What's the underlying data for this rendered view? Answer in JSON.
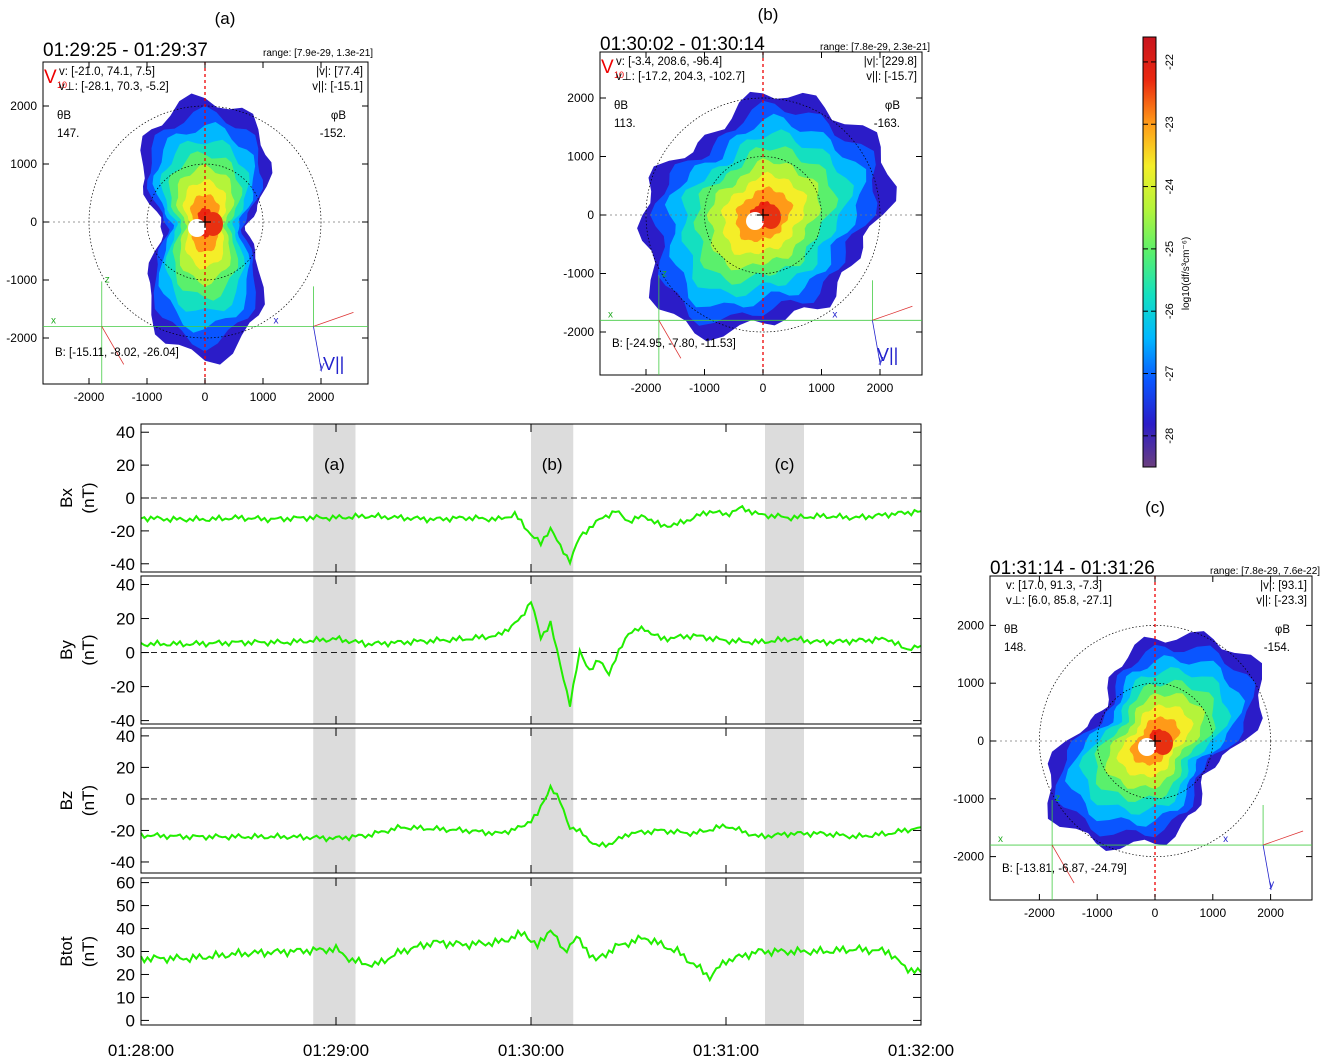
{
  "distributions": [
    {
      "panel_label": "(a)",
      "time_range": "01:29:25 - 01:29:37",
      "range": "range: [7.9e-29, 1.3e-21]",
      "v_label": "V",
      "v_sub": "10",
      "v": "v: [-21.0, 74.1, 7.5]",
      "vperp": "v⊥: [-28.1, 70.3, -5.2]",
      "vabs": "|v|: [77.4]",
      "vpar": "v||: [-15.1]",
      "theta_label": "θB",
      "theta_val": "147.",
      "phi_label": "φB",
      "phi_val": "-152.",
      "b_field": "B: [-15.11, -8.02, -26.04]",
      "axis_x": "x",
      "axis_y": "y",
      "axis_z": "z",
      "vpar_label": "V||",
      "xticks": [
        -2000,
        -1000,
        0,
        1000,
        2000
      ],
      "yticks": [
        2000,
        1000,
        0,
        -1000,
        -2000
      ],
      "core_offset": [
        0.02,
        0.0
      ],
      "blob_shape": "a"
    },
    {
      "panel_label": "(b)",
      "time_range": "01:30:02 - 01:30:14",
      "range": "range: [7.8e-29, 2.3e-21]",
      "v_label": "V",
      "v_sub": "10",
      "v": "v: [-3.4, 208.6, -96.4]",
      "vperp": "v⊥: [-17.2, 204.3, -102.7]",
      "vabs": "|v|: [229.8]",
      "vpar": "v||: [-15.7]",
      "theta_label": "θB",
      "theta_val": "113.",
      "phi_label": "φB",
      "phi_val": "-163.",
      "b_field": "B: [-24.95, -7.80, -11.53]",
      "axis_x": "x",
      "axis_y": "y",
      "axis_z": "z",
      "vpar_label": "V||",
      "xticks": [
        -2000,
        -1000,
        0,
        1000,
        2000
      ],
      "yticks": [
        2000,
        1000,
        0,
        -1000,
        -2000
      ],
      "core_offset": [
        0.0,
        0.0
      ],
      "blob_shape": "b"
    },
    {
      "panel_label": "(c)",
      "time_range": "01:31:14 - 01:31:26",
      "range": "range: [7.8e-29, 7.6e-22]",
      "v_label": "",
      "v_sub": "",
      "v": "v: [17.0, 91.3, -7.3]",
      "vperp": "v⊥: [6.0, 85.8, -27.1]",
      "vabs": "|v|: [93.1]",
      "vpar": "v||: [-23.3]",
      "theta_label": "θB",
      "theta_val": "148.",
      "phi_label": "φB",
      "phi_val": "-154.",
      "b_field": "B: [-13.81, -6.87, -24.79]",
      "axis_x": "x",
      "axis_y": "y",
      "axis_z": "z",
      "vpar_label": "",
      "xticks": [
        -2000,
        -1000,
        0,
        1000,
        2000
      ],
      "yticks": [
        2000,
        1000,
        0,
        -1000,
        -2000
      ],
      "core_offset": [
        0.0,
        0.0
      ],
      "blob_shape": "c"
    }
  ],
  "colorbar": {
    "label": "log10(df/s³cm⁻⁶)",
    "ticks": [
      -22,
      -23,
      -24,
      -25,
      -26,
      -27,
      -28
    ],
    "range": [
      -28.5,
      -21.6
    ],
    "colors": [
      "#6b3f7f",
      "#2b1cc8",
      "#0a55ff",
      "#00b8ff",
      "#14e0c0",
      "#5af06c",
      "#b4f43a",
      "#f4ee28",
      "#ff9a18",
      "#ea2810",
      "#c8141e"
    ]
  },
  "chart_data": {
    "type": "line",
    "x_ticks": [
      "01:28:00",
      "01:29:00",
      "01:30:00",
      "01:31:00",
      "01:32:00"
    ],
    "x_range": [
      "01:28:00",
      "01:32:00"
    ],
    "highlight_intervals": [
      {
        "label": "(a)",
        "start": "01:28:53",
        "end": "01:29:06"
      },
      {
        "label": "(b)",
        "start": "01:29:60",
        "end": "01:30:13"
      },
      {
        "label": "(c)",
        "start": "01:31:12",
        "end": "01:31:24"
      }
    ],
    "line_color": "#22ee00",
    "panels": [
      {
        "ylabel": "Bx",
        "yunit": "(nT)",
        "ylim": [
          -45,
          45
        ],
        "yticks": [
          40,
          20,
          0,
          -20,
          -40
        ],
        "zero_line": true,
        "x": [
          "01:28:00",
          "01:28:10",
          "01:28:20",
          "01:28:30",
          "01:28:40",
          "01:28:50",
          "01:29:00",
          "01:29:10",
          "01:29:20",
          "01:29:30",
          "01:29:40",
          "01:29:50",
          "01:29:55",
          "01:30:00",
          "01:30:03",
          "01:30:06",
          "01:30:09",
          "01:30:12",
          "01:30:15",
          "01:30:18",
          "01:30:22",
          "01:30:26",
          "01:30:30",
          "01:30:35",
          "01:30:40",
          "01:30:45",
          "01:30:50",
          "01:30:55",
          "01:31:00",
          "01:31:05",
          "01:31:10",
          "01:31:20",
          "01:31:30",
          "01:31:40",
          "01:31:50",
          "01:32:00"
        ],
        "y": [
          -12,
          -13,
          -13,
          -12,
          -13,
          -12,
          -12,
          -11,
          -12,
          -13,
          -12,
          -13,
          -10,
          -22,
          -28,
          -18,
          -30,
          -38,
          -24,
          -18,
          -12,
          -8,
          -14,
          -11,
          -17,
          -16,
          -12,
          -8,
          -10,
          -6,
          -10,
          -12,
          -11,
          -12,
          -10,
          -8
        ]
      },
      {
        "ylabel": "By",
        "yunit": "(nT)",
        "ylim": [
          -42,
          45
        ],
        "yticks": [
          40,
          20,
          0,
          -20,
          -40
        ],
        "zero_line": true,
        "x": [
          "01:28:00",
          "01:28:15",
          "01:28:30",
          "01:28:45",
          "01:29:00",
          "01:29:10",
          "01:29:20",
          "01:29:30",
          "01:29:40",
          "01:29:50",
          "01:29:57",
          "01:30:00",
          "01:30:03",
          "01:30:06",
          "01:30:09",
          "01:30:12",
          "01:30:15",
          "01:30:18",
          "01:30:21",
          "01:30:24",
          "01:30:27",
          "01:30:30",
          "01:30:35",
          "01:30:40",
          "01:30:50",
          "01:31:00",
          "01:31:10",
          "01:31:20",
          "01:31:30",
          "01:31:40",
          "01:31:50",
          "01:31:55",
          "01:32:00"
        ],
        "y": [
          5,
          5,
          6,
          6,
          8,
          5,
          6,
          7,
          8,
          10,
          20,
          31,
          8,
          18,
          -8,
          -30,
          0,
          -10,
          -5,
          -12,
          0,
          12,
          14,
          8,
          10,
          7,
          6,
          8,
          6,
          7,
          8,
          2,
          4
        ]
      },
      {
        "ylabel": "Bz",
        "yunit": "(nT)",
        "ylim": [
          -47,
          45
        ],
        "yticks": [
          40,
          20,
          0,
          -20,
          -40
        ],
        "zero_line": true,
        "x": [
          "01:28:00",
          "01:28:15",
          "01:28:30",
          "01:28:45",
          "01:29:00",
          "01:29:10",
          "01:29:20",
          "01:29:30",
          "01:29:40",
          "01:29:50",
          "01:29:57",
          "01:30:02",
          "01:30:06",
          "01:30:09",
          "01:30:12",
          "01:30:16",
          "01:30:20",
          "01:30:25",
          "01:30:30",
          "01:30:40",
          "01:30:50",
          "01:31:00",
          "01:31:10",
          "01:31:20",
          "01:31:30",
          "01:31:40",
          "01:31:50",
          "01:32:00"
        ],
        "y": [
          -23,
          -24,
          -24,
          -24,
          -25,
          -23,
          -18,
          -19,
          -20,
          -22,
          -18,
          -10,
          8,
          -2,
          -18,
          -22,
          -30,
          -28,
          -22,
          -20,
          -22,
          -17,
          -24,
          -22,
          -22,
          -24,
          -22,
          -18
        ]
      },
      {
        "ylabel": "Btot",
        "yunit": "(nT)",
        "ylim": [
          -2,
          62
        ],
        "yticks": [
          60,
          50,
          40,
          30,
          20,
          10,
          0
        ],
        "zero_line": false,
        "x": [
          "01:28:00",
          "01:28:15",
          "01:28:30",
          "01:28:45",
          "01:29:00",
          "01:29:05",
          "01:29:12",
          "01:29:20",
          "01:29:30",
          "01:29:40",
          "01:29:50",
          "01:29:58",
          "01:30:02",
          "01:30:06",
          "01:30:10",
          "01:30:14",
          "01:30:20",
          "01:30:26",
          "01:30:35",
          "01:30:45",
          "01:30:55",
          "01:31:00",
          "01:31:10",
          "01:31:20",
          "01:31:30",
          "01:31:40",
          "01:31:50",
          "01:31:55",
          "01:32:00"
        ],
        "y": [
          27,
          27,
          29,
          30,
          31,
          26,
          24,
          30,
          34,
          33,
          34,
          38,
          32,
          40,
          30,
          36,
          26,
          32,
          36,
          30,
          19,
          26,
          30,
          30,
          30,
          31,
          30,
          23,
          21
        ]
      }
    ]
  }
}
